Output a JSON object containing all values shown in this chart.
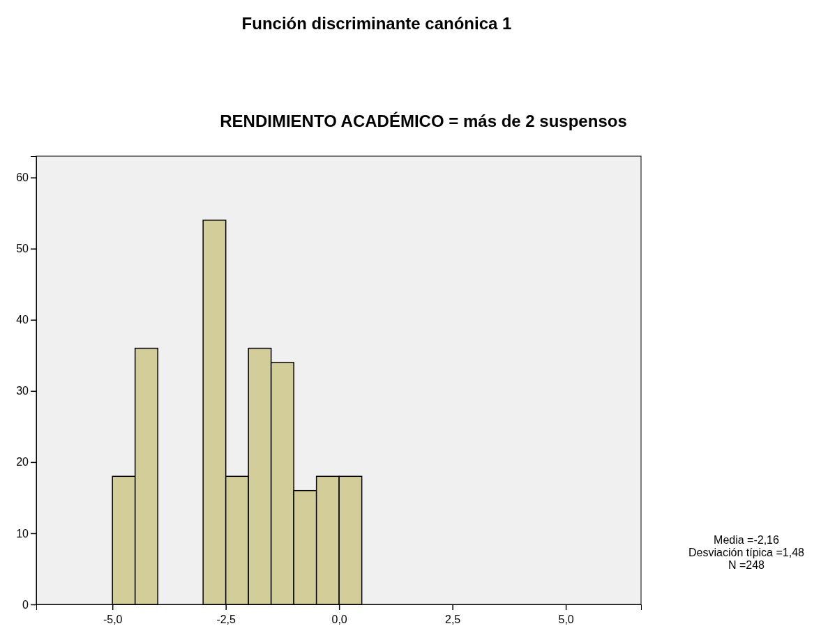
{
  "chart_data": {
    "type": "histogram",
    "title": "Función discriminante canónica 1",
    "subtitle": "RENDIMIENTO ACADÉMICO = más de 2 suspensos",
    "bins": [
      -5,
      -4.5,
      -4,
      -3.5,
      -3,
      -2.5,
      -2,
      -1.5,
      -1,
      -0.5,
      0,
      0.5
    ],
    "values": [
      18,
      36,
      0,
      0,
      54,
      18,
      36,
      34,
      16,
      18,
      18
    ],
    "color": "#d3ce99",
    "xlim": [
      -6.68,
      6.66
    ],
    "ylim": [
      0,
      63
    ],
    "xticks": [
      {
        "value": -5,
        "label": "-5,0"
      },
      {
        "value": -2.5,
        "label": "-2,5"
      },
      {
        "value": 0,
        "label": "0,0"
      },
      {
        "value": 2.5,
        "label": "2,5"
      },
      {
        "value": 5,
        "label": "5,0"
      }
    ],
    "yticks": [
      0,
      10,
      20,
      30,
      40,
      50,
      60
    ],
    "grid": false,
    "annotations": [
      "Media =-2,16",
      "Desviación típica =1,48",
      "N =248"
    ]
  }
}
